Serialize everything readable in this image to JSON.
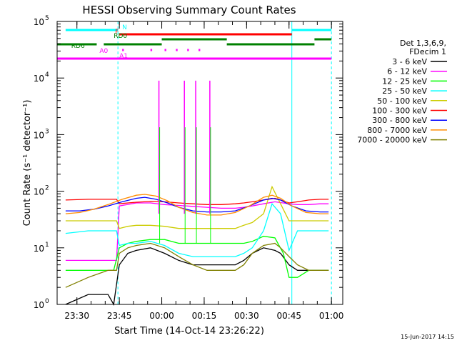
{
  "chart_data": {
    "type": "line",
    "title": "HESSI Observing Summary Count Rates",
    "xlabel": "Start Time (14-Oct-14 23:26:22)",
    "ylabel": "Count Rate (s⁻¹ detector⁻¹)",
    "x_unit": "minutes after 23:26:22",
    "xlim": [
      -3,
      98
    ],
    "ylim": [
      1,
      100000
    ],
    "yscale": "log",
    "x_ticks": [
      {
        "x": 4,
        "label": "23:30"
      },
      {
        "x": 19,
        "label": "23:45"
      },
      {
        "x": 34,
        "label": "00:00"
      },
      {
        "x": 49,
        "label": "00:15"
      },
      {
        "x": 64,
        "label": "00:30"
      },
      {
        "x": 79,
        "label": "00:45"
      },
      {
        "x": 94,
        "label": "01:00"
      }
    ],
    "y_ticks": [
      {
        "y": 1,
        "mant": "10",
        "exp": "0"
      },
      {
        "y": 10,
        "mant": "10",
        "exp": "1"
      },
      {
        "y": 100,
        "mant": "10",
        "exp": "2"
      },
      {
        "y": 1000,
        "mant": "10",
        "exp": "3"
      },
      {
        "y": 10000,
        "mant": "10",
        "exp": "4"
      },
      {
        "y": 100000,
        "mant": "10",
        "exp": "5"
      }
    ],
    "legend": {
      "header": [
        "Det 1,3,6,9,",
        "FDecim 1"
      ],
      "placement": "right"
    },
    "series": [
      {
        "name": "3 - 6 keV",
        "color": "#000000",
        "x": [
          0,
          8,
          15,
          17,
          19,
          22,
          25,
          30,
          35,
          40,
          45,
          50,
          55,
          60,
          63,
          66,
          70,
          74,
          76,
          79,
          82,
          86,
          90,
          93
        ],
        "y": [
          1,
          1.5,
          1.5,
          1,
          5,
          8,
          9,
          10,
          8,
          6,
          5,
          5,
          5,
          5,
          6,
          8,
          10,
          9,
          8,
          5,
          4,
          4,
          4,
          4
        ]
      },
      {
        "name": "6 - 12 keV",
        "color": "#ff00ff",
        "x": [
          0,
          8,
          15,
          18,
          19,
          25,
          30,
          35,
          40,
          45,
          50,
          55,
          60,
          63,
          66,
          70,
          74,
          79,
          82,
          86,
          90,
          93
        ],
        "y": [
          6,
          6,
          6,
          6,
          55,
          62,
          62,
          58,
          56,
          54,
          52,
          50,
          50,
          52,
          55,
          60,
          65,
          60,
          58,
          58,
          60,
          60
        ]
      },
      {
        "name": "12 - 25 keV",
        "color": "#00ff00",
        "x": [
          0,
          8,
          15,
          17,
          19,
          22,
          25,
          30,
          35,
          40,
          45,
          50,
          55,
          60,
          63,
          66,
          70,
          74,
          77,
          79,
          82,
          86,
          90,
          93
        ],
        "y": [
          4,
          4,
          4,
          4,
          10,
          12,
          13,
          14,
          14,
          12,
          12,
          12,
          12,
          12,
          12,
          13,
          16,
          15,
          8,
          3,
          3,
          4,
          4,
          4
        ]
      },
      {
        "name": "25 - 50 keV",
        "color": "#00ffff",
        "x": [
          0,
          8,
          15,
          18,
          19,
          22,
          25,
          30,
          35,
          40,
          45,
          50,
          55,
          60,
          63,
          66,
          70,
          73,
          76,
          79,
          82,
          86,
          90,
          93
        ],
        "y": [
          18,
          20,
          20,
          20,
          11,
          12,
          12,
          13,
          11,
          8,
          7,
          7,
          7,
          7,
          8,
          10,
          20,
          60,
          40,
          9,
          20,
          20,
          20,
          20
        ]
      },
      {
        "name": "50 - 100 keV",
        "color": "#cccc00",
        "x": [
          0,
          8,
          15,
          18,
          19,
          22,
          25,
          30,
          35,
          40,
          45,
          50,
          55,
          60,
          63,
          66,
          70,
          73,
          76,
          79,
          82,
          86,
          90,
          93
        ],
        "y": [
          30,
          30,
          30,
          30,
          22,
          24,
          25,
          25,
          24,
          22,
          22,
          22,
          22,
          22,
          25,
          28,
          40,
          120,
          60,
          30,
          30,
          30,
          30,
          30
        ]
      },
      {
        "name": "100 - 300 keV",
        "color": "#ff0000",
        "x": [
          0,
          8,
          15,
          18,
          19,
          22,
          25,
          30,
          35,
          40,
          45,
          50,
          55,
          60,
          63,
          66,
          70,
          74,
          76,
          79,
          82,
          86,
          90,
          93
        ],
        "y": [
          70,
          72,
          72,
          72,
          60,
          62,
          64,
          66,
          65,
          62,
          60,
          58,
          58,
          60,
          62,
          65,
          70,
          75,
          70,
          62,
          65,
          70,
          72,
          72
        ]
      },
      {
        "name": "300 - 800 keV",
        "color": "#0000ff",
        "x": [
          0,
          5,
          10,
          15,
          20,
          25,
          28,
          32,
          36,
          40,
          45,
          50,
          55,
          60,
          65,
          70,
          73,
          76,
          80,
          85,
          90,
          93
        ],
        "y": [
          45,
          45,
          48,
          55,
          65,
          75,
          78,
          72,
          62,
          52,
          45,
          43,
          43,
          45,
          55,
          70,
          75,
          70,
          55,
          45,
          43,
          43
        ]
      },
      {
        "name": "800 - 7000 keV",
        "color": "#ff8c00",
        "x": [
          0,
          5,
          10,
          15,
          20,
          25,
          28,
          32,
          36,
          40,
          45,
          50,
          55,
          60,
          65,
          70,
          73,
          76,
          80,
          85,
          90,
          93
        ],
        "y": [
          40,
          42,
          48,
          58,
          72,
          85,
          88,
          82,
          68,
          52,
          42,
          38,
          38,
          42,
          55,
          78,
          85,
          75,
          55,
          42,
          40,
          40
        ]
      },
      {
        "name": "7000 - 20000 keV",
        "color": "#808000",
        "x": [
          0,
          8,
          15,
          18,
          19,
          22,
          25,
          30,
          35,
          40,
          45,
          50,
          55,
          60,
          63,
          66,
          70,
          74,
          76,
          79,
          82,
          86,
          90,
          93
        ],
        "y": [
          2,
          3,
          4,
          4,
          8,
          10,
          11,
          12,
          10,
          7,
          5,
          4,
          4,
          4,
          5,
          8,
          11,
          12,
          10,
          7,
          5,
          4,
          4,
          4
        ]
      }
    ],
    "attenuator_spikes": [
      {
        "x": 33,
        "y": 9000
      },
      {
        "x": 42,
        "y": 9000
      },
      {
        "x": 46,
        "y": 9000
      },
      {
        "x": 51,
        "y": 9000
      }
    ],
    "vertical_lines": [
      {
        "x": 18.5,
        "style": "dashed",
        "color": "#00ffff"
      },
      {
        "x": 80,
        "style": "solid",
        "color": "#00ffff"
      },
      {
        "x": 94,
        "style": "dashed",
        "color": "#00ffff"
      }
    ],
    "state_bars": [
      {
        "label": "N",
        "color": "#00ffff",
        "level": 1,
        "segments": [
          [
            0,
            18.5
          ],
          [
            80,
            94
          ]
        ],
        "label_x": 20
      },
      {
        "label": "F",
        "color": "#ff0000",
        "level": 2,
        "segments": [
          [
            19,
            80
          ]
        ],
        "label_x": 17.5
      },
      {
        "label": "RD0",
        "color": "#008000",
        "level": 3,
        "segments": [
          [
            34,
            57
          ],
          [
            88,
            94
          ]
        ],
        "label_x": 17
      },
      {
        "label": "RD6",
        "color": "#008000",
        "level": 4,
        "segments": [
          [
            -3,
            11
          ],
          [
            13.5,
            34
          ],
          [
            57,
            88
          ]
        ],
        "label_x": 2
      },
      {
        "label": "A0",
        "color": "#ff00ff",
        "level": 5,
        "segments": [
          [
            20,
            20.6
          ],
          [
            30,
            30.6
          ],
          [
            35,
            35.6
          ],
          [
            39,
            39.6
          ],
          [
            43,
            43.6
          ],
          [
            47,
            47.6
          ]
        ],
        "label_x": 12
      },
      {
        "label": "A1",
        "color": "#ff00ff",
        "level": 6,
        "segments": [
          [
            -3,
            94
          ]
        ],
        "label_x": 19
      }
    ]
  },
  "footer": {
    "date_stamp": "15-Jun-2017 14:15"
  }
}
